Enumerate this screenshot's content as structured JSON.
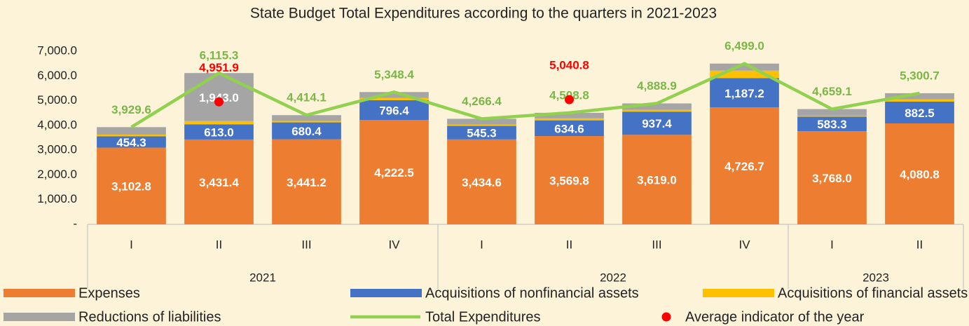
{
  "chart_data": {
    "type": "bar",
    "stacked": true,
    "title": "State Budget Total Expenditures according to the quarters in 2021-2023",
    "groups": [
      {
        "name": "2021",
        "categories": [
          "I",
          "II",
          "III",
          "IV"
        ]
      },
      {
        "name": "2022",
        "categories": [
          "I",
          "II",
          "III",
          "IV"
        ]
      },
      {
        "name": "2023",
        "categories": [
          "I",
          "II"
        ]
      }
    ],
    "ylim": [
      0,
      7000
    ],
    "yticks": [
      {
        "value": 0,
        "label": "-"
      },
      {
        "value": 1000,
        "label": "1,000.0"
      },
      {
        "value": 2000,
        "label": "2,000.0"
      },
      {
        "value": 3000,
        "label": "3,000.0"
      },
      {
        "value": 4000,
        "label": "4,000.0"
      },
      {
        "value": 5000,
        "label": "5,000.0"
      },
      {
        "value": 6000,
        "label": "6,000.0"
      },
      {
        "value": 7000,
        "label": "7,000.0"
      }
    ],
    "grid": false,
    "series": [
      {
        "name": "Expenses",
        "type": "bar",
        "color": "#ed7d31",
        "label_color": "#ffffff",
        "values": [
          3102.8,
          3431.4,
          3441.2,
          4222.5,
          3434.6,
          3569.8,
          3619.0,
          4726.7,
          3768.0,
          4080.8
        ],
        "value_labels": [
          "3,102.8",
          "3,431.4",
          "3,441.2",
          "4,222.5",
          "3,434.6",
          "3,569.8",
          "3,619.0",
          "4,726.7",
          "3,768.0",
          "4,080.8"
        ]
      },
      {
        "name": "Acquisitions of nonfinancial assets",
        "type": "bar",
        "color": "#4472c4",
        "label_color": "#ffffff",
        "values": [
          454.3,
          613.0,
          680.4,
          796.4,
          545.3,
          634.6,
          937.4,
          1187.2,
          583.3,
          882.5
        ],
        "value_labels": [
          "454.3",
          "613.0",
          "680.4",
          "796.4",
          "545.3",
          "634.6",
          "937.4",
          "1,187.2",
          "583.3",
          "882.5"
        ]
      },
      {
        "name": "Acquisitions of financial assets",
        "type": "bar",
        "color": "#ffc000",
        "values": [
          70,
          127.9,
          60,
          90,
          50,
          80,
          70,
          300,
          40,
          90
        ]
      },
      {
        "name": "Reductions of liabilities",
        "type": "bar",
        "color": "#a5a5a5",
        "label_color": "#ffffff",
        "values": [
          302.5,
          1943.0,
          232.5,
          239.5,
          236.5,
          224.4,
          262.5,
          285.1,
          267.8,
          247.4
        ],
        "value_labels": [
          null,
          "1,943.0",
          null,
          null,
          null,
          null,
          null,
          null,
          null,
          null
        ]
      },
      {
        "name": "Total Expenditures",
        "type": "line",
        "color": "#92d050",
        "label_color": "#7ab648",
        "values": [
          3929.6,
          6115.3,
          4414.1,
          5348.4,
          4266.4,
          4508.8,
          4888.9,
          6499.0,
          4659.1,
          5300.7
        ],
        "value_labels": [
          "3,929.6",
          "6,115.3",
          "4,414.1",
          "5,348.4",
          "4,266.4",
          "4,508.8",
          "4,888.9",
          "6,499.0",
          "4,659.1",
          "5,300.7"
        ]
      },
      {
        "name": "Average indicator of the year",
        "type": "scatter",
        "color": "#ff0000",
        "label_color": "#ff0000",
        "values": [
          null,
          4951.9,
          null,
          null,
          null,
          5040.8,
          null,
          null,
          null,
          null
        ],
        "value_labels": [
          null,
          "4,951.9",
          null,
          null,
          null,
          "5,040.8",
          null,
          null,
          null,
          null
        ]
      }
    ]
  }
}
